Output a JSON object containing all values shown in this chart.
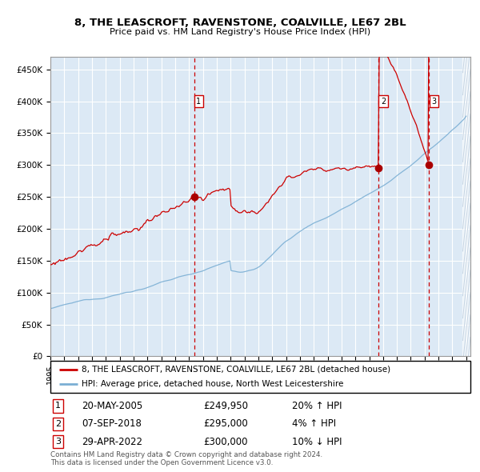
{
  "title1": "8, THE LEASCROFT, RAVENSTONE, COALVILLE, LE67 2BL",
  "title2": "Price paid vs. HM Land Registry's House Price Index (HPI)",
  "bg_color": "#dce9f5",
  "red_line_color": "#cc0000",
  "blue_line_color": "#7bafd4",
  "sale_marker_color": "#aa0000",
  "dashed_line_color": "#cc0000",
  "yticks": [
    0,
    50000,
    100000,
    150000,
    200000,
    250000,
    300000,
    350000,
    400000,
    450000
  ],
  "ytick_labels": [
    "£0",
    "£50K",
    "£100K",
    "£150K",
    "£200K",
    "£250K",
    "£300K",
    "£350K",
    "£400K",
    "£450K"
  ],
  "sale_events": [
    {
      "date": 2005.38,
      "price": 249950,
      "label": "1",
      "hpi_rel": "20% ↑ HPI",
      "date_str": "20-MAY-2005",
      "price_str": "£249,950"
    },
    {
      "date": 2018.68,
      "price": 295000,
      "label": "2",
      "hpi_rel": "4% ↑ HPI",
      "date_str": "07-SEP-2018",
      "price_str": "£295,000"
    },
    {
      "date": 2022.32,
      "price": 300000,
      "label": "3",
      "hpi_rel": "10% ↓ HPI",
      "date_str": "29-APR-2022",
      "price_str": "£300,000"
    }
  ],
  "legend_line1": "8, THE LEASCROFT, RAVENSTONE, COALVILLE, LE67 2BL (detached house)",
  "legend_line2": "HPI: Average price, detached house, North West Leicestershire",
  "footnote": "Contains HM Land Registry data © Crown copyright and database right 2024.\nThis data is licensed under the Open Government Licence v3.0."
}
